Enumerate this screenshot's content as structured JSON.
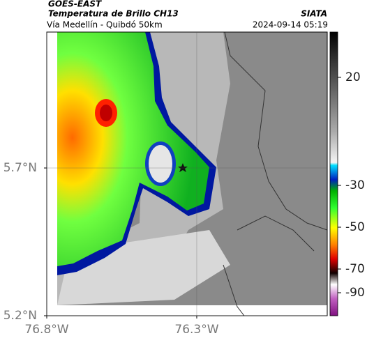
{
  "header": {
    "satellite": "GOES-EAST",
    "product": "Temperatura de Brillo CH13",
    "route": "Vía Medellín - Quibdó 50km",
    "source": "SIATA",
    "timestamp": "2024-09-14 05:19"
  },
  "map": {
    "latlim": [
      5.2,
      6.16
    ],
    "lonlim": [
      -76.8,
      -75.865
    ],
    "latticks": [
      {
        "value": 5.2,
        "label": "5.2°N"
      },
      {
        "value": 5.7,
        "label": "5.7°N"
      }
    ],
    "lonticks": [
      {
        "value": -76.8,
        "label": "76.8°W"
      },
      {
        "value": -76.3,
        "label": "76.3°W"
      }
    ],
    "grid": true
  },
  "colorbar": {
    "ticks": [
      20,
      -30,
      -50,
      -70,
      -90
    ]
  }
}
